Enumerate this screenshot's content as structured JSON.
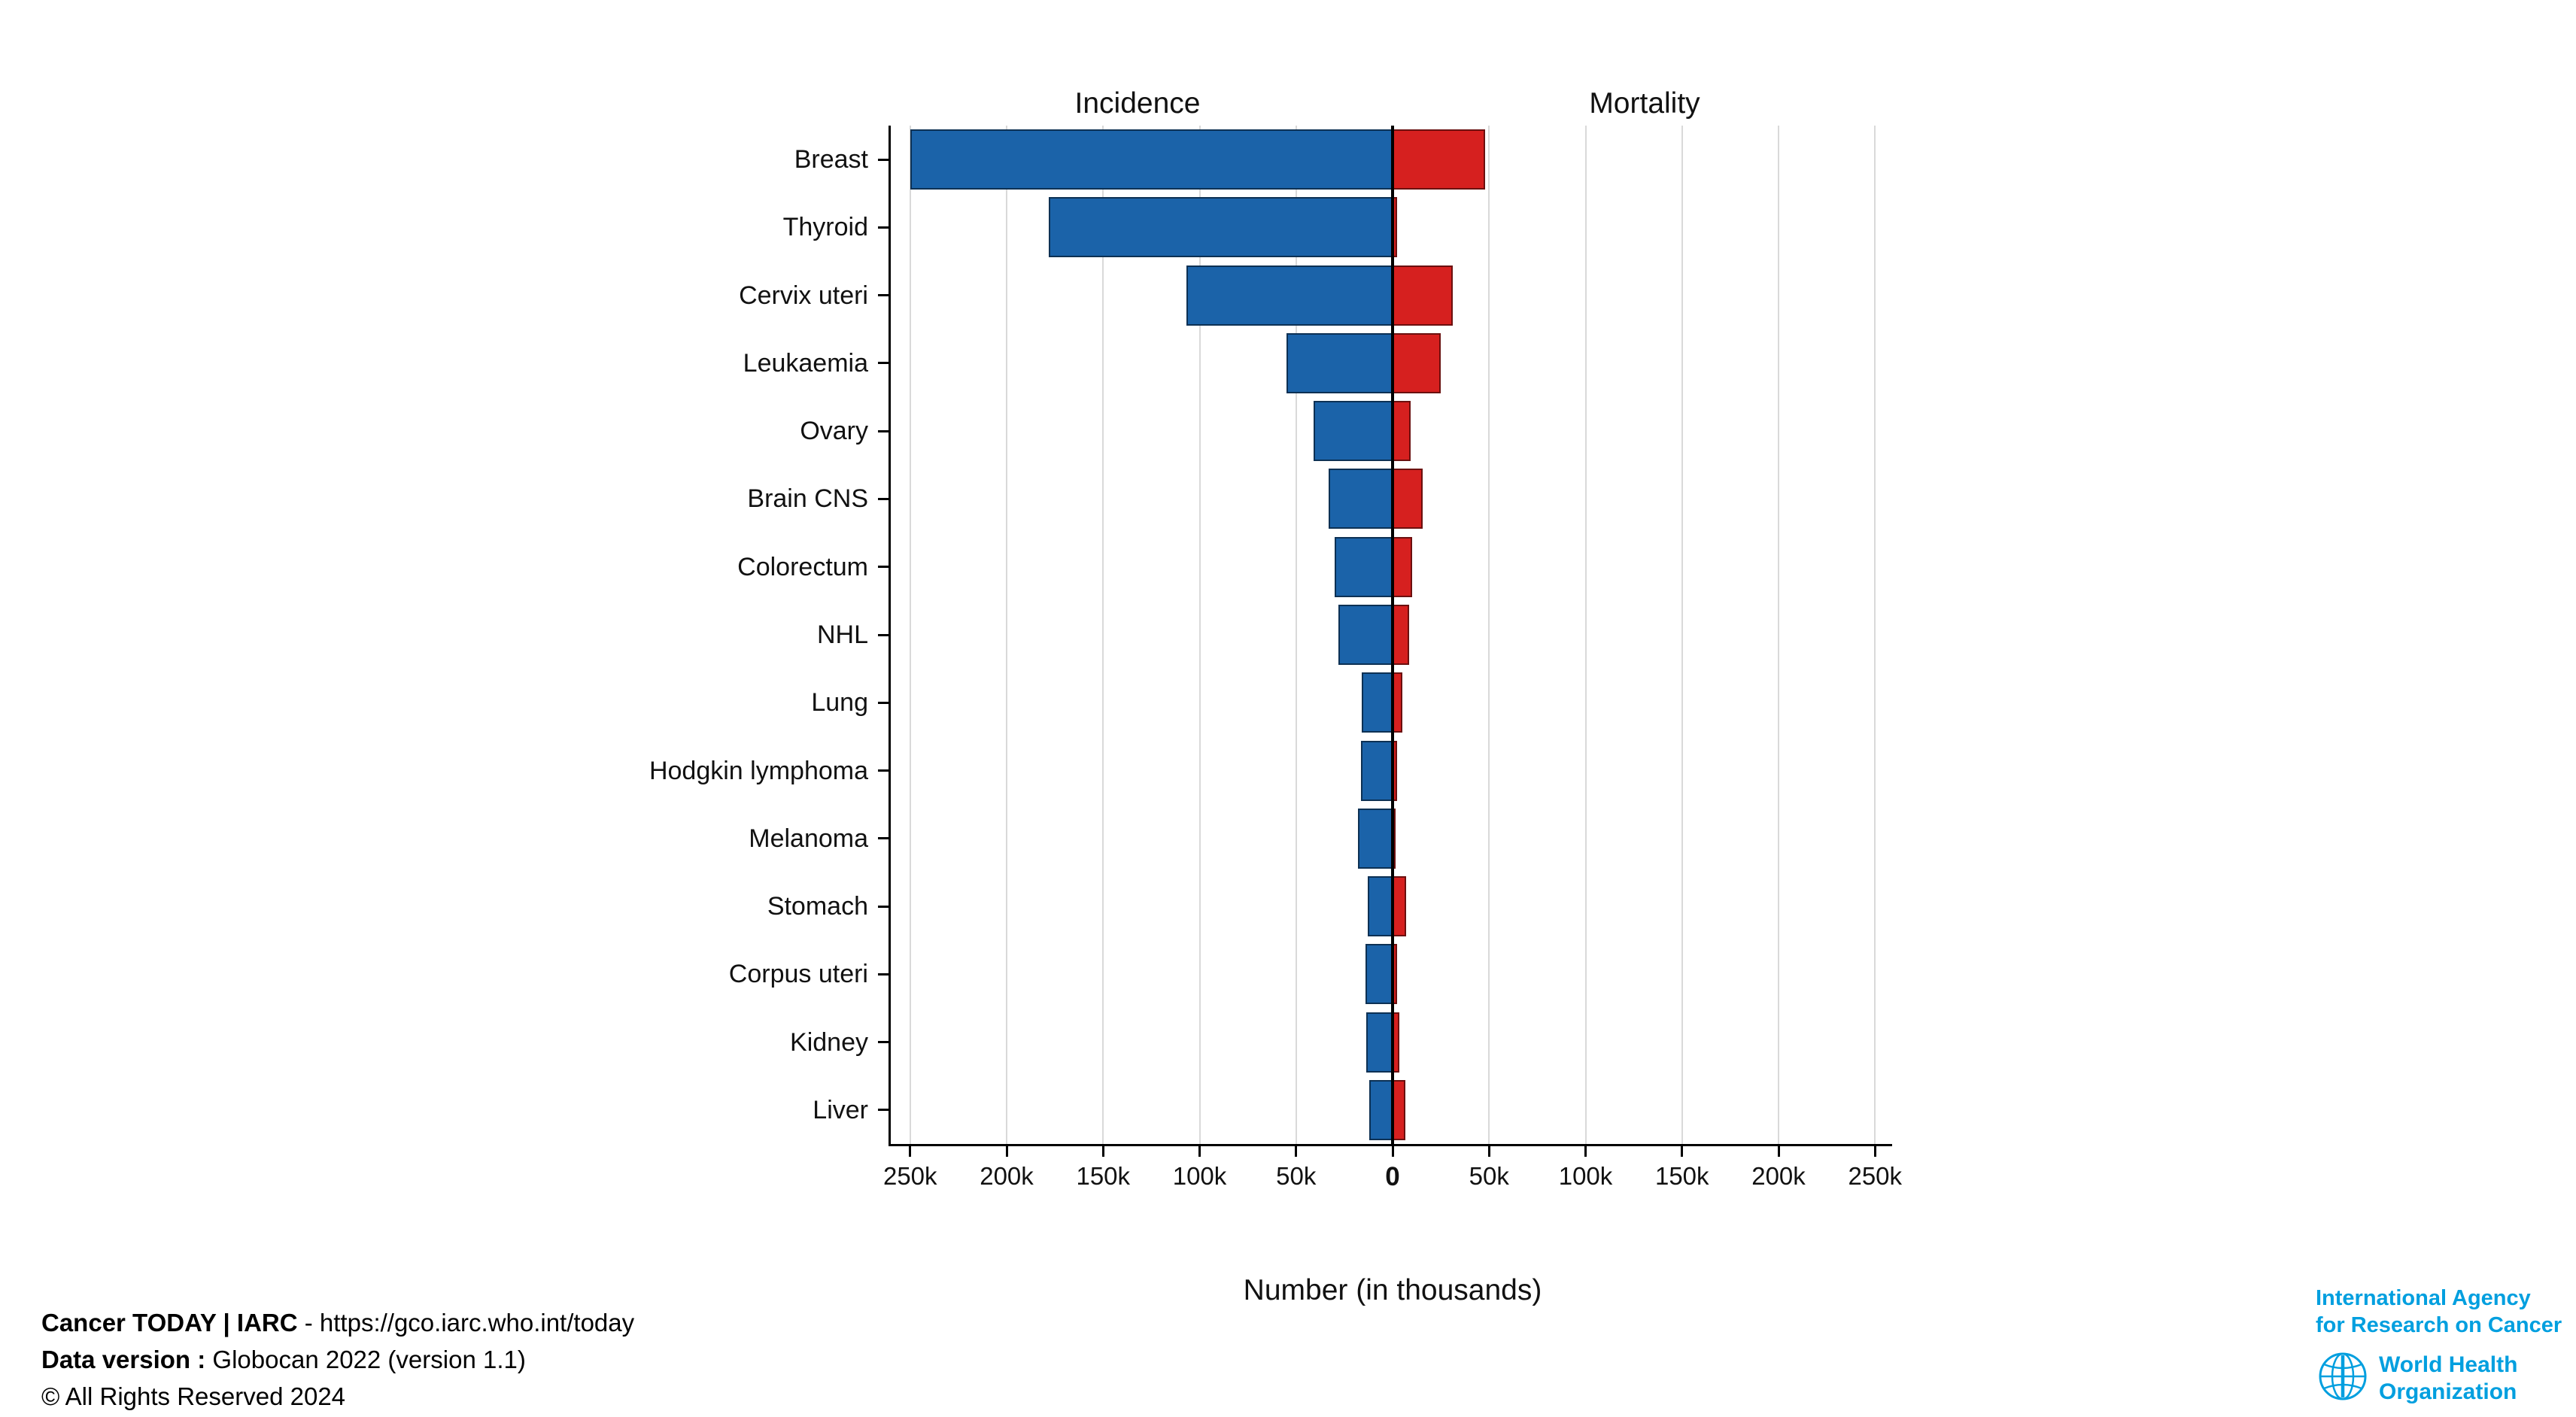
{
  "chart_data": {
    "type": "bar",
    "subtype": "diverging-horizontal",
    "title_left": "Incidence",
    "title_right": "Mortality",
    "xlabel": "Number (in thousands)",
    "grid": true,
    "categories": [
      "Breast",
      "Thyroid",
      "Cervix uteri",
      "Leukaemia",
      "Ovary",
      "Brain CNS",
      "Colorectum",
      "NHL",
      "Lung",
      "Hodgkin lymphoma",
      "Melanoma",
      "Stomach",
      "Corpus uteri",
      "Kidney",
      "Liver"
    ],
    "series": [
      {
        "name": "Incidence",
        "side": "left",
        "color": "#1b63a9",
        "values_thousands": [
          250,
          178,
          107,
          55,
          41,
          33,
          30,
          28,
          16,
          16.5,
          18,
          13,
          14,
          13.5,
          12
        ]
      },
      {
        "name": "Mortality",
        "side": "right",
        "color": "#d6201f",
        "values_thousands": [
          48,
          2.5,
          31,
          25,
          9.5,
          15.5,
          10,
          8.5,
          5,
          2.5,
          1.5,
          7,
          2.5,
          3.5,
          6.5
        ]
      }
    ],
    "x_ticks": [
      {
        "value": -250,
        "label": "250k"
      },
      {
        "value": -200,
        "label": "200k"
      },
      {
        "value": -150,
        "label": "150k"
      },
      {
        "value": -100,
        "label": "100k"
      },
      {
        "value": -50,
        "label": "50k"
      },
      {
        "value": 0,
        "label": "0"
      },
      {
        "value": 50,
        "label": "50k"
      },
      {
        "value": 100,
        "label": "100k"
      },
      {
        "value": 150,
        "label": "150k"
      },
      {
        "value": 200,
        "label": "200k"
      },
      {
        "value": 250,
        "label": "250k"
      }
    ],
    "x_range_thousands": [
      -260,
      260
    ]
  },
  "footer": {
    "line1_bold": "Cancer TODAY | IARC",
    "line1_rest": " - https://gco.iarc.who.int/today",
    "line2_bold": "Data version :",
    "line2_rest": " Globocan 2022 (version 1.1)",
    "line3": "© All Rights Reserved 2024"
  },
  "logos": {
    "iarc_line1": "International Agency",
    "iarc_line2": "for Research on Cancer",
    "who_line1": "World Health",
    "who_line2": "Organization",
    "brand_blue": "#009fdf"
  }
}
